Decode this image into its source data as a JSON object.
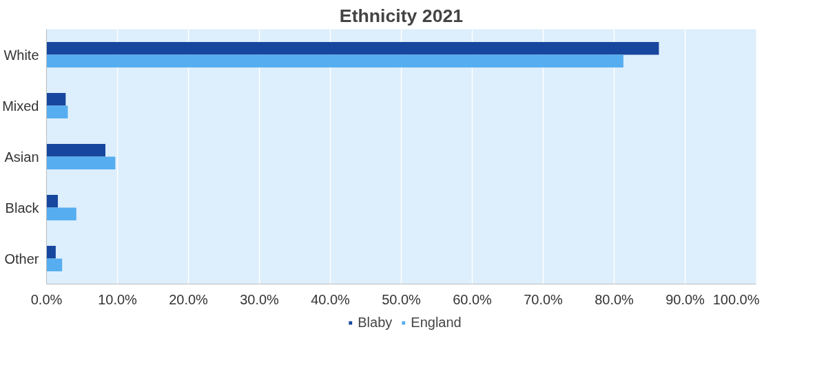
{
  "chart_data": {
    "type": "bar",
    "orientation": "horizontal",
    "title": "Ethnicity 2021",
    "categories": [
      "White",
      "Mixed",
      "Asian",
      "Black",
      "Other"
    ],
    "series": [
      {
        "name": "Blaby",
        "color": "#17469e",
        "values": [
          86.3,
          2.7,
          8.3,
          1.6,
          1.3
        ]
      },
      {
        "name": "England",
        "color": "#56aef0",
        "values": [
          81.3,
          3.0,
          9.7,
          4.2,
          2.2
        ]
      }
    ],
    "xlim": [
      0,
      100
    ],
    "xticks": [
      {
        "value": 0,
        "label": "0.0%"
      },
      {
        "value": 10,
        "label": "10.0%"
      },
      {
        "value": 20,
        "label": "20.0%"
      },
      {
        "value": 30,
        "label": "30.0%"
      },
      {
        "value": 40,
        "label": "40.0%"
      },
      {
        "value": 50,
        "label": "50.0%"
      },
      {
        "value": 60,
        "label": "60.0%"
      },
      {
        "value": 70,
        "label": "70.0%"
      },
      {
        "value": 80,
        "label": "80.0%"
      },
      {
        "value": 90,
        "label": "90.0%"
      },
      {
        "value": 100,
        "label": "100.0%"
      }
    ],
    "grid": "x",
    "legend": "bottom"
  }
}
